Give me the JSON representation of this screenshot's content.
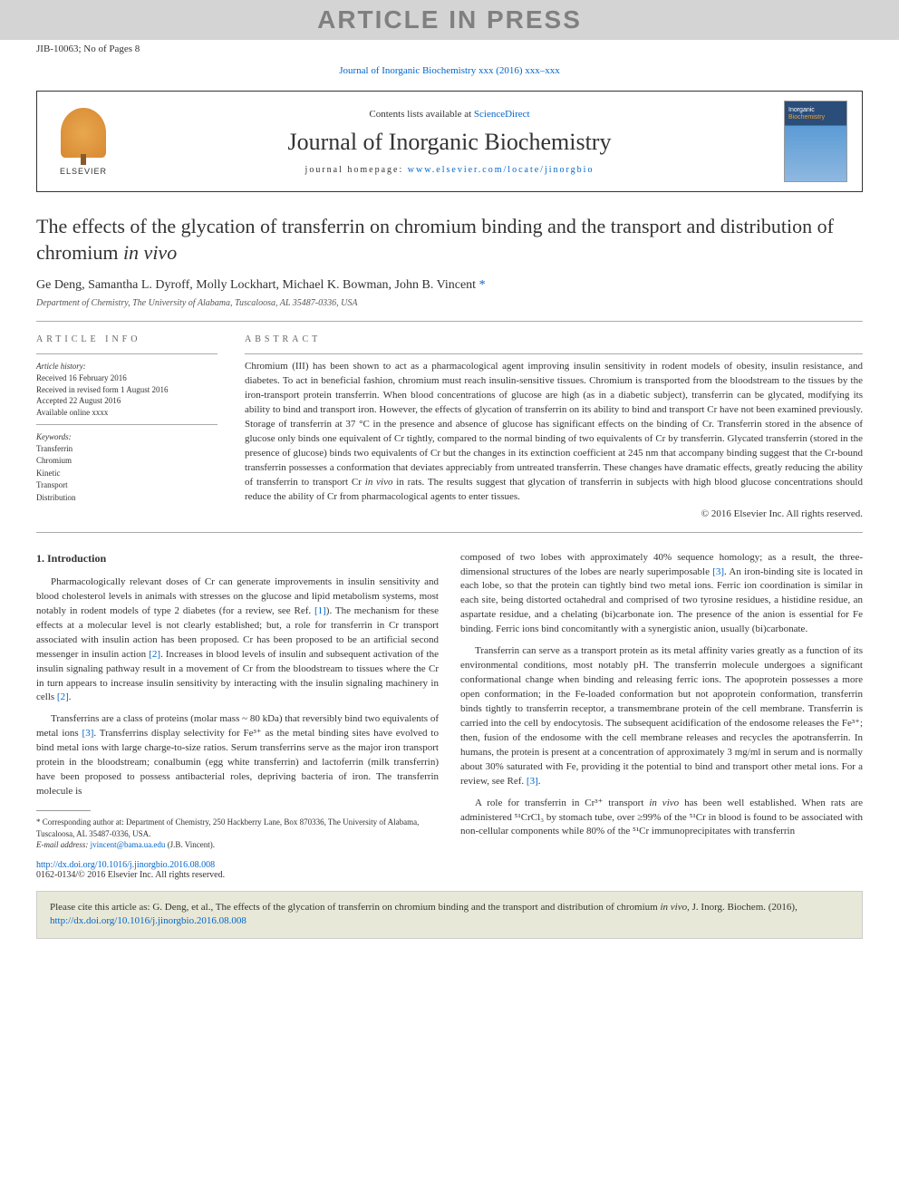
{
  "banner": {
    "text": "ARTICLE IN PRESS",
    "bg": "#d4d4d4",
    "fg": "#808080"
  },
  "article_id": "JIB-10063; No of Pages 8",
  "top_link": {
    "text": "Journal of Inorganic Biochemistry xxx (2016) xxx–xxx",
    "color": "#0066cc"
  },
  "header_box": {
    "elsevier_label": "ELSEVIER",
    "contents_pre": "Contents lists available at ",
    "contents_link": "ScienceDirect",
    "journal_title": "Journal of Inorganic Biochemistry",
    "homepage_pre": "journal homepage: ",
    "homepage_link": "www.elsevier.com/locate/jinorgbio",
    "cover_line1": "Inorganic",
    "cover_line2": "Biochemistry"
  },
  "title": {
    "pre": "The effects of the glycation of transferrin on chromium binding and the transport and distribution of chromium ",
    "italic": "in vivo"
  },
  "authors": {
    "list": "Ge Deng, Samantha L. Dyroff, Molly Lockhart, Michael K. Bowman, John B. Vincent",
    "corr_marker": " *"
  },
  "affiliation": "Department of Chemistry, The University of Alabama, Tuscaloosa, AL 35487-0336, USA",
  "article_info": {
    "header": "article info",
    "history_label": "Article history:",
    "history": [
      "Received 16 February 2016",
      "Received in revised form 1 August 2016",
      "Accepted 22 August 2016",
      "Available online xxxx"
    ],
    "keywords_label": "Keywords:",
    "keywords": [
      "Transferrin",
      "Chromium",
      "Kinetic",
      "Transport",
      "Distribution"
    ]
  },
  "abstract": {
    "header": "abstract",
    "text_pre": "Chromium (III) has been shown to act as a pharmacological agent improving insulin sensitivity in rodent models of obesity, insulin resistance, and diabetes. To act in beneficial fashion, chromium must reach insulin-sensitive tissues. Chromium is transported from the bloodstream to the tissues by the iron-transport protein transferrin. When blood concentrations of glucose are high (as in a diabetic subject), transferrin can be glycated, modifying its ability to bind and transport iron. However, the effects of glycation of transferrin on its ability to bind and transport Cr have not been examined previously. Storage of transferrin at 37 °C in the presence and absence of glucose has significant effects on the binding of Cr. Transferrin stored in the absence of glucose only binds one equivalent of Cr tightly, compared to the normal binding of two equivalents of Cr by transferrin. Glycated transferrin (stored in the presence of glucose) binds two equivalents of Cr but the changes in its extinction coefficient at 245 nm that accompany binding suggest that the Cr-bound transferrin possesses a conformation that deviates appreciably from untreated transferrin. These changes have dramatic effects, greatly reducing the ability of transferrin to transport Cr ",
    "text_italic": "in vivo",
    "text_post": " in rats. The results suggest that glycation of transferrin in subjects with high blood glucose concentrations should reduce the ability of Cr from pharmacological agents to enter tissues.",
    "copyright": "© 2016 Elsevier Inc. All rights reserved."
  },
  "body": {
    "section_heading": "1. Introduction",
    "col1_p1_a": "Pharmacologically relevant doses of Cr can generate improvements in insulin sensitivity and blood cholesterol levels in animals with stresses on the glucose and lipid metabolism systems, most notably in rodent models of type 2 diabetes (for a review, see Ref. ",
    "col1_p1_ref1": "[1]",
    "col1_p1_b": "). The mechanism for these effects at a molecular level is not clearly established; but, a role for transferrin in Cr transport associated with insulin action has been proposed. Cr has been proposed to be an artificial second messenger in insulin action ",
    "col1_p1_ref2": "[2]",
    "col1_p1_c": ". Increases in blood levels of insulin and subsequent activation of the insulin signaling pathway result in a movement of Cr from the bloodstream to tissues where the Cr in turn appears to increase insulin sensitivity by interacting with the insulin signaling machinery in cells ",
    "col1_p1_ref3": "[2]",
    "col1_p1_d": ".",
    "col1_p2_a": "Transferrins are a class of proteins (molar mass ~ 80 kDa) that reversibly bind two equivalents of metal ions ",
    "col1_p2_ref1": "[3]",
    "col1_p2_b": ". Transferrins display selectivity for Fe³⁺ as the metal binding sites have evolved to bind metal ions with large charge-to-size ratios. Serum transferrins serve as the major iron transport protein in the bloodstream; conalbumin (egg white transferrin) and lactoferrin (milk transferrin) have been proposed to possess antibacterial roles, depriving bacteria of iron. The transferrin molecule is",
    "col2_p1_a": "composed of two lobes with approximately 40% sequence homology; as a result, the three-dimensional structures of the lobes are nearly superimposable ",
    "col2_p1_ref1": "[3]",
    "col2_p1_b": ". An iron-binding site is located in each lobe, so that the protein can tightly bind two metal ions. Ferric ion coordination is similar in each site, being distorted octahedral and comprised of two tyrosine residues, a histidine residue, an aspartate residue, and a chelating (bi)carbonate ion. The presence of the anion is essential for Fe binding. Ferric ions bind concomitantly with a synergistic anion, usually (bi)carbonate.",
    "col2_p2_a": "Transferrin can serve as a transport protein as its metal affinity varies greatly as a function of its environmental conditions, most notably pH. The transferrin molecule undergoes a significant conformational change when binding and releasing ferric ions. The apoprotein possesses a more open conformation; in the Fe-loaded conformation but not apoprotein conformation, transferrin binds tightly to transferrin receptor, a transmembrane protein of the cell membrane. Transferrin is carried into the cell by endocytosis. The subsequent acidification of the endosome releases the Fe³⁺; then, fusion of the endosome with the cell membrane releases and recycles the apotransferrin. In humans, the protein is present at a concentration of approximately 3 mg/ml in serum and is normally about 30% saturated with Fe, providing it the potential to bind and transport other metal ions. For a review, see Ref. ",
    "col2_p2_ref1": "[3]",
    "col2_p2_b": ".",
    "col2_p3_a": "A role for transferrin in Cr³⁺ transport ",
    "col2_p3_italic": "in vivo",
    "col2_p3_b": " has been well established. When rats are administered ⁵¹CrCl₃ by stomach tube, over ≥99% of the ⁵¹Cr in blood is found to be associated with non-cellular components while 80% of the ⁵¹Cr immunoprecipitates with transferrin"
  },
  "footnote": {
    "corr_text": "* Corresponding author at: Department of Chemistry, 250 Hackberry Lane, Box 870336, The University of Alabama, Tuscaloosa, AL 35487-0336, USA.",
    "email_label": "E-mail address: ",
    "email": "jvincent@bama.ua.edu",
    "email_post": " (J.B. Vincent)."
  },
  "footer": {
    "doi": "http://dx.doi.org/10.1016/j.jinorgbio.2016.08.008",
    "issn_copy": "0162-0134/© 2016 Elsevier Inc. All rights reserved."
  },
  "citebox": {
    "pre": "Please cite this article as: G. Deng, et al., The effects of the glycation of transferrin on chromium binding and the transport and distribution of chromium ",
    "italic": "in vivo",
    "mid": ", J. Inorg. Biochem. (2016), ",
    "link": "http://dx.doi.org/10.1016/j.jinorgbio.2016.08.008"
  },
  "colors": {
    "link": "#0066cc",
    "banner_bg": "#d4d4d4",
    "banner_fg": "#808080",
    "citebox_bg": "#e8e8d8",
    "divider": "#aaaaaa"
  },
  "typography": {
    "body_fontsize_pt": 9,
    "title_fontsize_pt": 18,
    "journal_title_fontsize_pt": 22,
    "abstract_fontsize_pt": 9,
    "font_family": "Georgia, serif"
  }
}
